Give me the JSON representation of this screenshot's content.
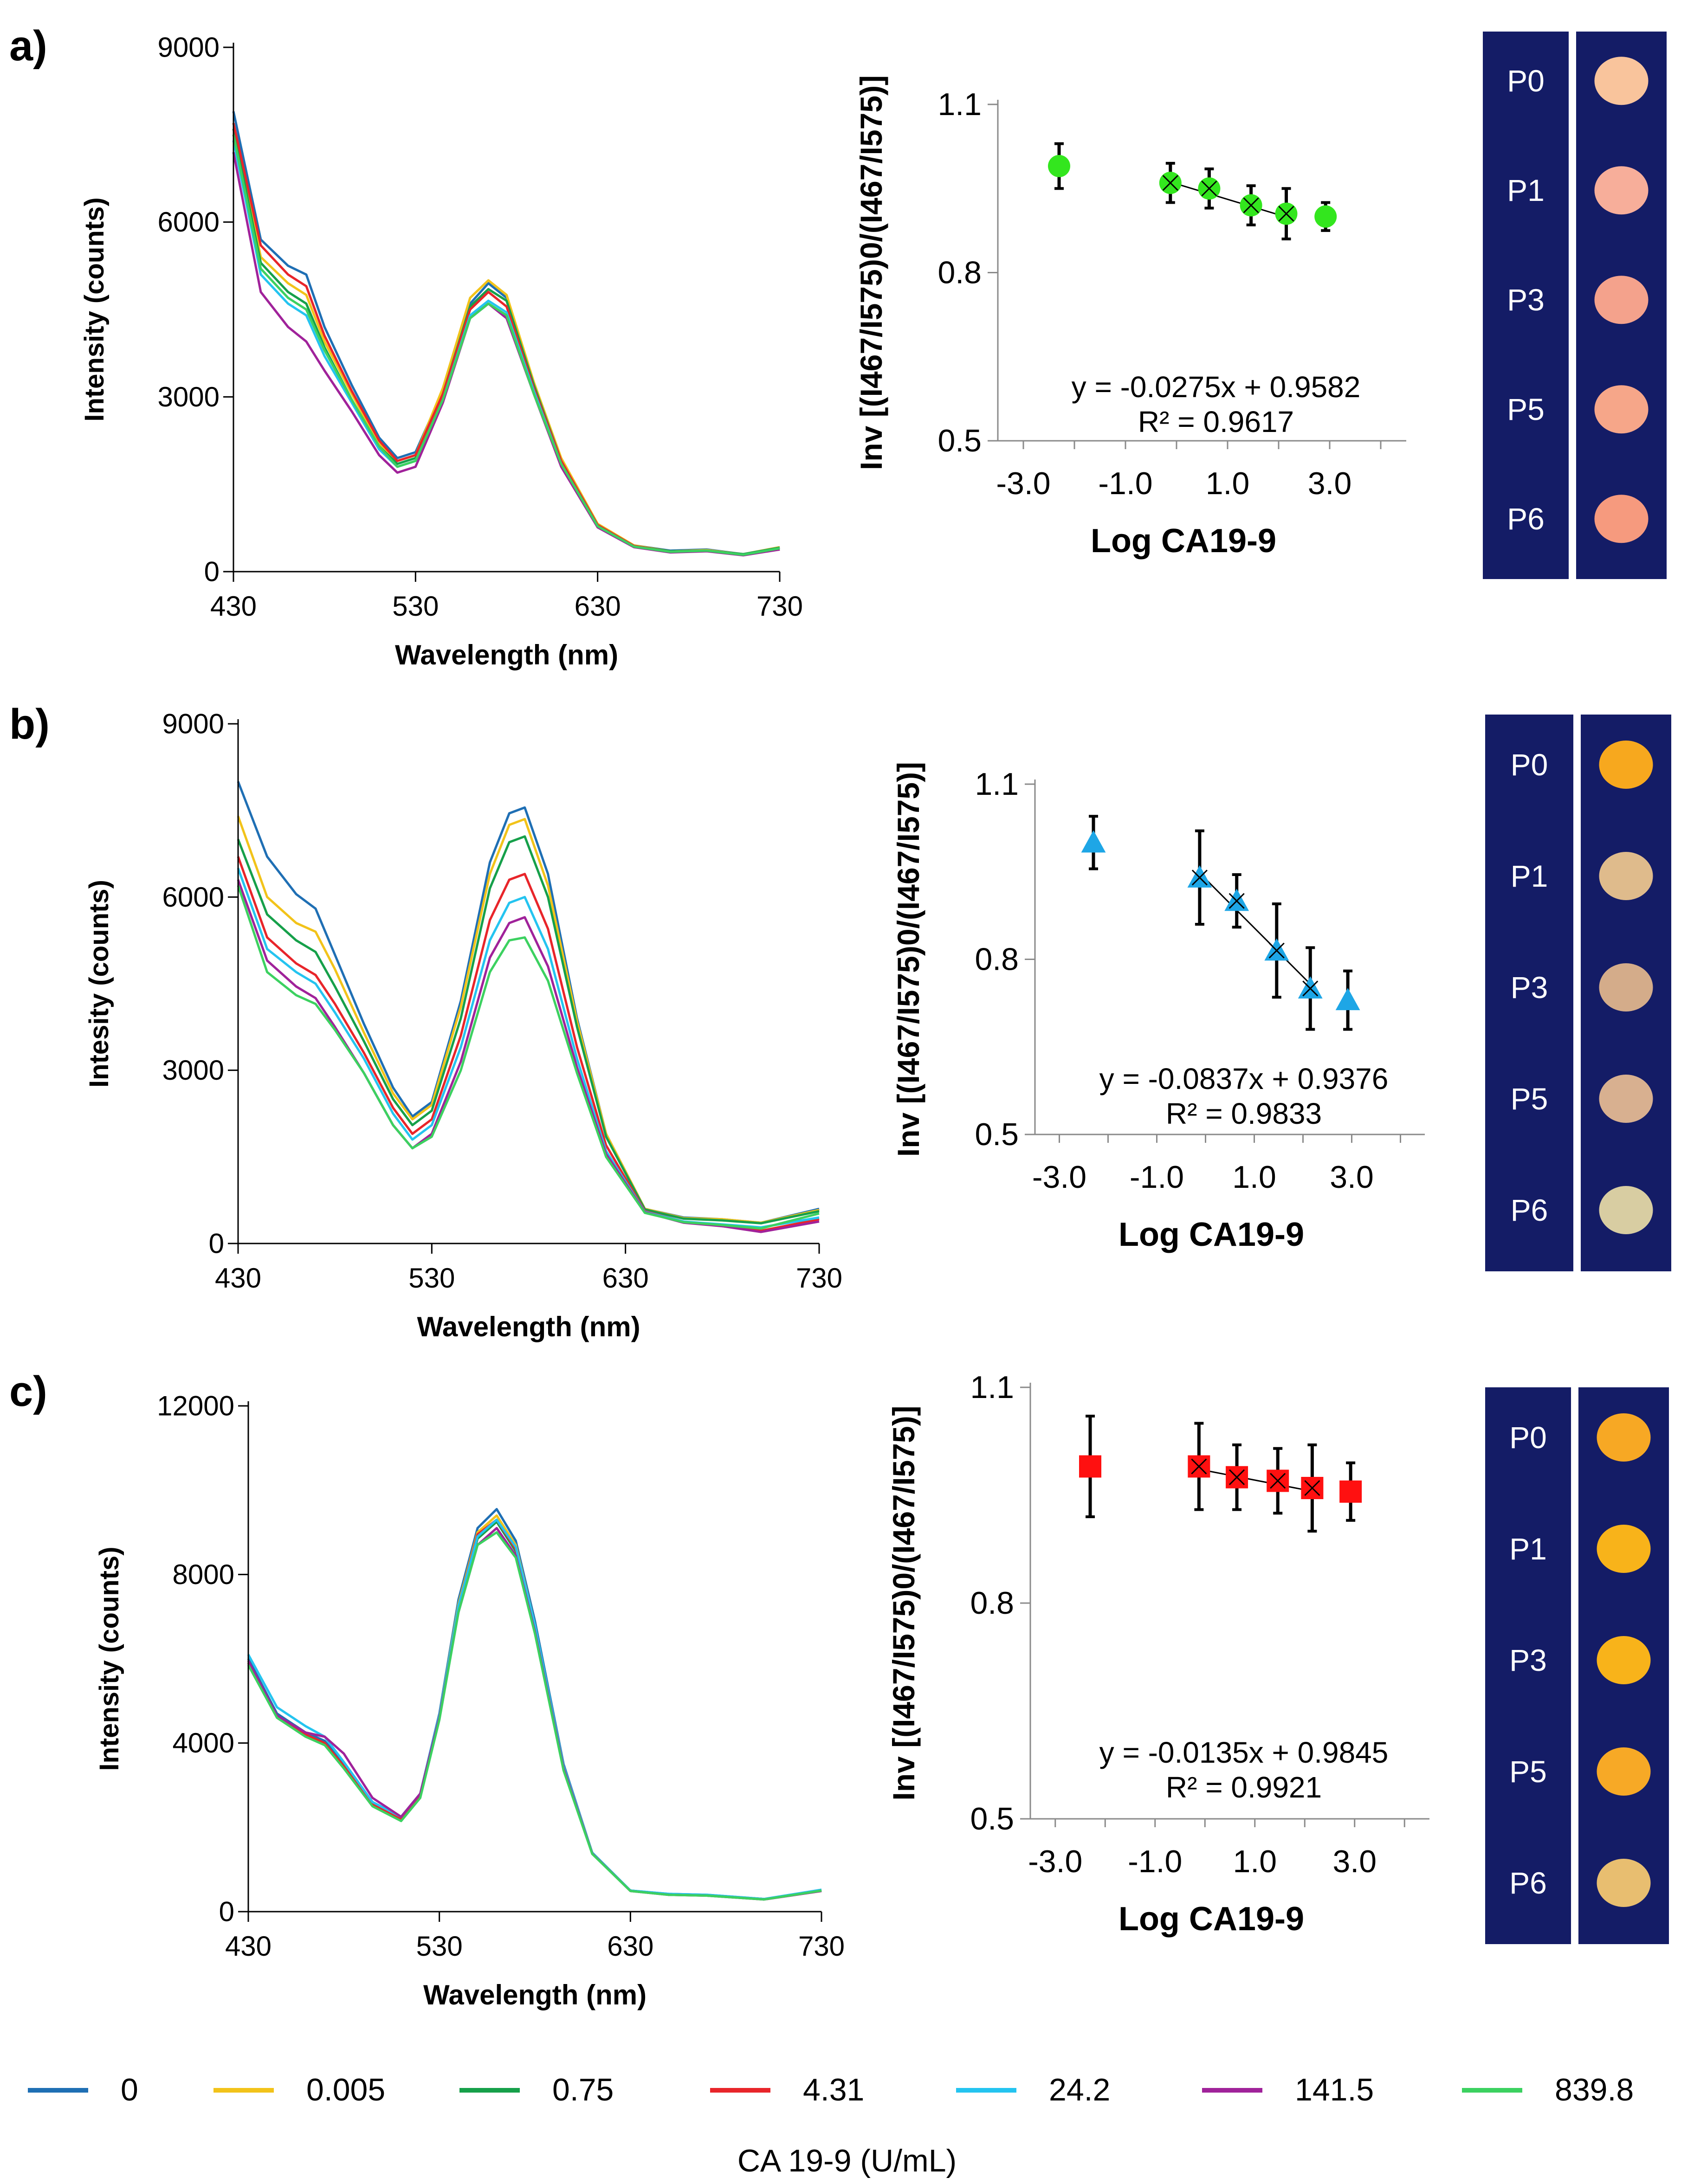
{
  "figure": {
    "legend_title": "CA 19-9 (U/mL)",
    "legend": [
      {
        "label": "0",
        "color": "#1F6FB4"
      },
      {
        "label": "0.005",
        "color": "#F2C31A"
      },
      {
        "label": "0.75",
        "color": "#16A04A"
      },
      {
        "label": "4.31",
        "color": "#E8252A"
      },
      {
        "label": "24.2",
        "color": "#24C4F0"
      },
      {
        "label": "141.5",
        "color": "#A0229A"
      },
      {
        "label": "839.8",
        "color": "#3CD160"
      }
    ]
  },
  "panels": [
    {
      "label": "a)",
      "spectrum": {
        "type": "line",
        "ylabel": "Intensity (counts)",
        "xlabel": "Wavelength (nm)",
        "xlim": [
          430,
          730
        ],
        "ylim": [
          0,
          9000
        ],
        "xticks": [
          "430",
          "530",
          "630",
          "730"
        ],
        "yticks": [
          "0",
          "3000",
          "6000",
          "9000"
        ],
        "x": [
          430,
          445,
          460,
          470,
          480,
          495,
          510,
          520,
          530,
          545,
          560,
          570,
          580,
          595,
          610,
          630,
          650,
          670,
          690,
          710,
          730
        ],
        "series": [
          {
            "name": "0",
            "values": [
              7900,
              5700,
              5250,
              5100,
              4200,
              3200,
              2300,
              1950,
              2050,
              3100,
              4600,
              4950,
              4700,
              3200,
              1900,
              800,
              450,
              360,
              380,
              300,
              420
            ]
          },
          {
            "name": "0.005",
            "values": [
              7700,
              5400,
              4950,
              4750,
              3950,
              3050,
              2200,
              1900,
              2000,
              3150,
              4700,
              5000,
              4750,
              3250,
              1950,
              820,
              450,
              350,
              370,
              300,
              420
            ]
          },
          {
            "name": "0.75",
            "values": [
              7600,
              5300,
              4800,
              4600,
              3850,
              2950,
              2150,
              1850,
              1950,
              3050,
              4550,
              4850,
              4650,
              3200,
              1900,
              800,
              440,
              350,
              360,
              300,
              410
            ]
          },
          {
            "name": "4.31",
            "values": [
              7700,
              5600,
              5100,
              4900,
              4050,
              3100,
              2250,
              1900,
              2000,
              3050,
              4500,
              4800,
              4550,
              3150,
              1900,
              800,
              440,
              340,
              360,
              290,
              380
            ]
          },
          {
            "name": "24.2",
            "values": [
              7400,
              5100,
              4600,
              4400,
              3700,
              2900,
              2100,
              1800,
              1900,
              2950,
              4400,
              4650,
              4450,
              3100,
              1850,
              780,
              430,
              340,
              360,
              290,
              400
            ]
          },
          {
            "name": "141.5",
            "values": [
              7200,
              4800,
              4200,
              3950,
              3450,
              2750,
              2000,
              1700,
              1800,
              2900,
              4350,
              4600,
              4350,
              3050,
              1800,
              760,
              420,
              330,
              350,
              280,
              380
            ]
          },
          {
            "name": "839.8",
            "values": [
              7500,
              5200,
              4700,
              4500,
              3800,
              2950,
              2150,
              1800,
              1900,
              2950,
              4350,
              4600,
              4400,
              3050,
              1850,
              780,
              430,
              340,
              360,
              290,
              400
            ]
          }
        ]
      },
      "calibration": {
        "type": "scatter",
        "ylabel": "Inv [(I467/I575)0/(I467/I575)]",
        "xlabel": "Log CA19-9",
        "xlim": [
          -3.5,
          4.5
        ],
        "ylim": [
          0.5,
          1.1
        ],
        "xticks": [
          "-3.0",
          "-1.0",
          "1.0",
          "3.0"
        ],
        "yticks": [
          "0.5",
          "0.8",
          "1.1"
        ],
        "x": [
          -2.3,
          -0.12,
          0.64,
          1.46,
          2.15,
          2.92
        ],
        "y": [
          0.99,
          0.96,
          0.95,
          0.92,
          0.905,
          0.9
        ],
        "err": [
          0.04,
          0.035,
          0.035,
          0.035,
          0.045,
          0.025
        ],
        "fit_range": [
          -0.12,
          2.15
        ],
        "marker": "circle",
        "marker_color": "#33E61E",
        "equation": "y = -0.0275x + 0.9582",
        "r2": "R² = 0.9617",
        "fit_slope": -0.0275,
        "fit_intercept": 0.9582
      },
      "strip": {
        "labels": [
          "P0",
          "P1",
          "P3",
          "P5",
          "P6"
        ],
        "spot_colors": [
          "#F9C49C",
          "#F7AE9A",
          "#F4A28C",
          "#F6A689",
          "#F69A7E"
        ],
        "background": "#141C66"
      }
    },
    {
      "label": "b)",
      "spectrum": {
        "type": "line",
        "ylabel": "Intesity (counts)",
        "xlabel": "Wavelength (nm)",
        "xlim": [
          430,
          730
        ],
        "ylim": [
          0,
          9000
        ],
        "xticks": [
          "430",
          "530",
          "630",
          "730"
        ],
        "yticks": [
          "0",
          "3000",
          "6000",
          "9000"
        ],
        "x": [
          430,
          445,
          460,
          470,
          480,
          495,
          510,
          520,
          530,
          545,
          560,
          570,
          578,
          590,
          605,
          620,
          640,
          660,
          680,
          700,
          730
        ],
        "series": [
          {
            "name": "0",
            "values": [
              8000,
              6700,
              6050,
              5800,
              5000,
              3800,
              2700,
              2200,
              2450,
              4200,
              6600,
              7450,
              7550,
              6400,
              3900,
              1900,
              600,
              450,
              420,
              360,
              600
            ]
          },
          {
            "name": "0.005",
            "values": [
              7400,
              6000,
              5550,
              5400,
              4750,
              3650,
              2600,
              2150,
              2400,
              4100,
              6400,
              7250,
              7350,
              6200,
              3850,
              1900,
              600,
              440,
              420,
              360,
              580
            ]
          },
          {
            "name": "0.75",
            "values": [
              7000,
              5700,
              5250,
              5050,
              4450,
              3500,
              2500,
              2050,
              2300,
              3900,
              6150,
              6950,
              7050,
              6000,
              3750,
              1850,
              590,
              430,
              400,
              350,
              560
            ]
          },
          {
            "name": "4.31",
            "values": [
              6700,
              5300,
              4850,
              4650,
              4150,
              3300,
              2350,
              1900,
              2150,
              3600,
              5600,
              6300,
              6400,
              5450,
              3400,
              1700,
              560,
              380,
              300,
              220,
              420
            ]
          },
          {
            "name": "24.2",
            "values": [
              6500,
              5100,
              4700,
              4500,
              4000,
              3200,
              2250,
              1800,
              2050,
              3400,
              5250,
              5900,
              6000,
              5100,
              3200,
              1600,
              550,
              380,
              330,
              280,
              450
            ]
          },
          {
            "name": "141.5",
            "values": [
              6300,
              4900,
              4450,
              4250,
              3750,
              2950,
              2050,
              1650,
              1900,
              3150,
              4950,
              5550,
              5650,
              4800,
              3050,
              1550,
              540,
              360,
              300,
              200,
              380
            ]
          },
          {
            "name": "839.8",
            "values": [
              6200,
              4700,
              4300,
              4150,
              3700,
              2950,
              2050,
              1650,
              1850,
              3000,
              4700,
              5250,
              5300,
              4550,
              2950,
              1500,
              530,
              370,
              320,
              260,
              520
            ]
          }
        ]
      },
      "calibration": {
        "type": "scatter",
        "ylabel": "Inv [(I467/I575)0/(I467/I575)]",
        "xlabel": "Log CA19-9",
        "xlim": [
          -3.5,
          4.5
        ],
        "ylim": [
          0.5,
          1.1
        ],
        "xticks": [
          "-3.0",
          "-1.0",
          "1.0",
          "3.0"
        ],
        "yticks": [
          "0.5",
          "0.8",
          "1.1"
        ],
        "x": [
          -2.3,
          -0.12,
          0.64,
          1.46,
          2.15,
          2.92
        ],
        "y": [
          1.0,
          0.94,
          0.9,
          0.815,
          0.75,
          0.73
        ],
        "err": [
          0.045,
          0.08,
          0.045,
          0.08,
          0.07,
          0.05
        ],
        "fit_range": [
          -0.12,
          2.15
        ],
        "marker": "triangle",
        "marker_color": "#1EA6E6",
        "equation": "y = -0.0837x + 0.9376",
        "r2": "R² = 0.9833",
        "fit_slope": -0.0837,
        "fit_intercept": 0.9376
      },
      "strip": {
        "labels": [
          "P0",
          "P1",
          "P3",
          "P5",
          "P6"
        ],
        "spot_colors": [
          "#F7A81E",
          "#DFBB8C",
          "#D4AC8A",
          "#D8B090",
          "#D8CDA2"
        ],
        "background": "#141C66"
      }
    },
    {
      "label": "c)",
      "spectrum": {
        "type": "line",
        "ylabel": "Intensity (counts)",
        "xlabel": "Wavelength (nm)",
        "xlim": [
          430,
          730
        ],
        "ylim": [
          0,
          12000
        ],
        "xticks": [
          "430",
          "530",
          "630",
          "730"
        ],
        "yticks": [
          "0",
          "4000",
          "8000",
          "12000"
        ],
        "x": [
          430,
          445,
          460,
          470,
          480,
          495,
          510,
          520,
          530,
          540,
          550,
          560,
          570,
          580,
          595,
          610,
          630,
          650,
          670,
          700,
          730
        ],
        "series": [
          {
            "name": "0",
            "values": [
              6000,
              4700,
              4250,
              4050,
              3500,
              2600,
              2250,
              2800,
              4700,
              7400,
              9100,
              9550,
              8800,
              6900,
              3500,
              1400,
              500,
              420,
              400,
              300,
              520
            ]
          },
          {
            "name": "0.005",
            "values": [
              5900,
              4650,
              4200,
              4000,
              3450,
              2550,
              2200,
              2750,
              4650,
              7300,
              9000,
              9400,
              8700,
              6800,
              3450,
              1400,
              500,
              410,
              390,
              300,
              510
            ]
          },
          {
            "name": "0.75",
            "values": [
              5900,
              4650,
              4200,
              4000,
              3450,
              2550,
              2200,
              2750,
              4600,
              7200,
              8850,
              9250,
              8550,
              6700,
              3400,
              1380,
              500,
              410,
              390,
              300,
              500
            ]
          },
          {
            "name": "4.31",
            "values": [
              5900,
              4650,
              4200,
              4000,
              3450,
              2550,
              2200,
              2750,
              4600,
              7250,
              8950,
              9300,
              8600,
              6750,
              3420,
              1380,
              490,
              400,
              380,
              290,
              490
            ]
          },
          {
            "name": "24.2",
            "values": [
              6100,
              4850,
              4400,
              4150,
              3550,
              2600,
              2250,
              2800,
              4650,
              7250,
              8900,
              9300,
              8650,
              6800,
              3450,
              1400,
              500,
              420,
              400,
              300,
              520
            ]
          },
          {
            "name": "141.5",
            "values": [
              5950,
              4650,
              4250,
              4150,
              3750,
              2700,
              2250,
              2800,
              4600,
              7100,
              8700,
              9100,
              8450,
              6650,
              3400,
              1380,
              490,
              400,
              380,
              290,
              490
            ]
          },
          {
            "name": "839.8",
            "values": [
              5850,
              4600,
              4150,
              3950,
              3400,
              2500,
              2150,
              2700,
              4550,
              7100,
              8700,
              9000,
              8400,
              6600,
              3350,
              1370,
              490,
              400,
              380,
              290,
              500
            ]
          }
        ]
      },
      "calibration": {
        "type": "scatter",
        "ylabel": "Inv [(I467/I575)0/(I467/I575)]",
        "xlabel": "Log CA19-9",
        "xlim": [
          -3.5,
          4.5
        ],
        "ylim": [
          0.5,
          1.1
        ],
        "xticks": [
          "-3.0",
          "-1.0",
          "1.0",
          "3.0"
        ],
        "yticks": [
          "0.5",
          "0.8",
          "1.1"
        ],
        "x": [
          -2.3,
          -0.12,
          0.64,
          1.46,
          2.15,
          2.92
        ],
        "y": [
          0.99,
          0.99,
          0.975,
          0.97,
          0.96,
          0.955
        ],
        "err": [
          0.07,
          0.06,
          0.045,
          0.045,
          0.06,
          0.04
        ],
        "fit_range": [
          -0.12,
          2.15
        ],
        "marker": "square",
        "marker_color": "#FF1010",
        "equation": "y = -0.0135x + 0.9845",
        "r2": "R² = 0.9921",
        "fit_slope": -0.0135,
        "fit_intercept": 0.9845
      },
      "strip": {
        "labels": [
          "P0",
          "P1",
          "P3",
          "P5",
          "P6"
        ],
        "spot_colors": [
          "#F7A824",
          "#F8B31A",
          "#F8B31A",
          "#F7A926",
          "#E8BE70"
        ],
        "background": "#141C66"
      }
    }
  ]
}
